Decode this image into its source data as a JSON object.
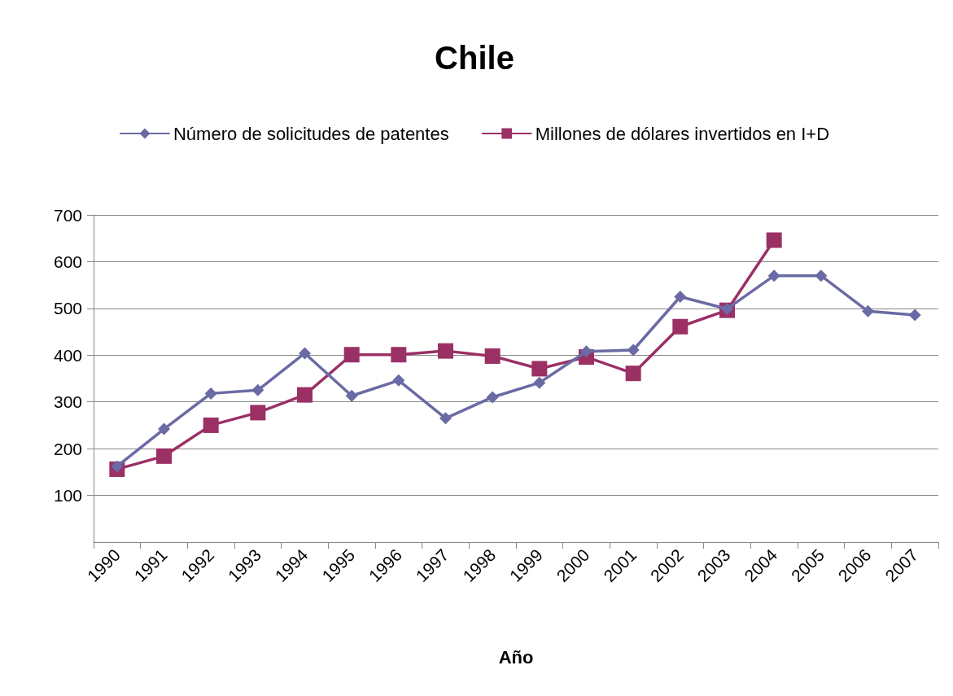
{
  "chart_data": {
    "type": "line",
    "title": "Chile",
    "xlabel": "Año",
    "categories": [
      "1990",
      "1991",
      "1992",
      "1993",
      "1994",
      "1995",
      "1996",
      "1997",
      "1998",
      "1999",
      "2000",
      "2001",
      "2002",
      "2003",
      "2004",
      "2005",
      "2006",
      "2007"
    ],
    "series": [
      {
        "name": "Número de solicitudes de patentes",
        "color": "#6a6aa4",
        "marker": "diamond",
        "values": [
          162,
          242,
          318,
          325,
          404,
          313,
          346,
          265,
          310,
          341,
          408,
          411,
          525,
          499,
          570,
          570,
          494,
          486
        ]
      },
      {
        "name": "Millones de dólares invertidos en I+D",
        "color": "#9b3065",
        "marker": "square",
        "values": [
          156,
          184,
          250,
          277,
          315,
          401,
          401,
          409,
          398,
          371,
          396,
          361,
          461,
          496,
          646,
          null,
          null,
          null
        ]
      }
    ],
    "ylim": [
      0,
      700
    ],
    "yticks": [
      100,
      200,
      300,
      400,
      500,
      600,
      700
    ],
    "grid": "y",
    "legend": "top",
    "line_style": "solid"
  }
}
